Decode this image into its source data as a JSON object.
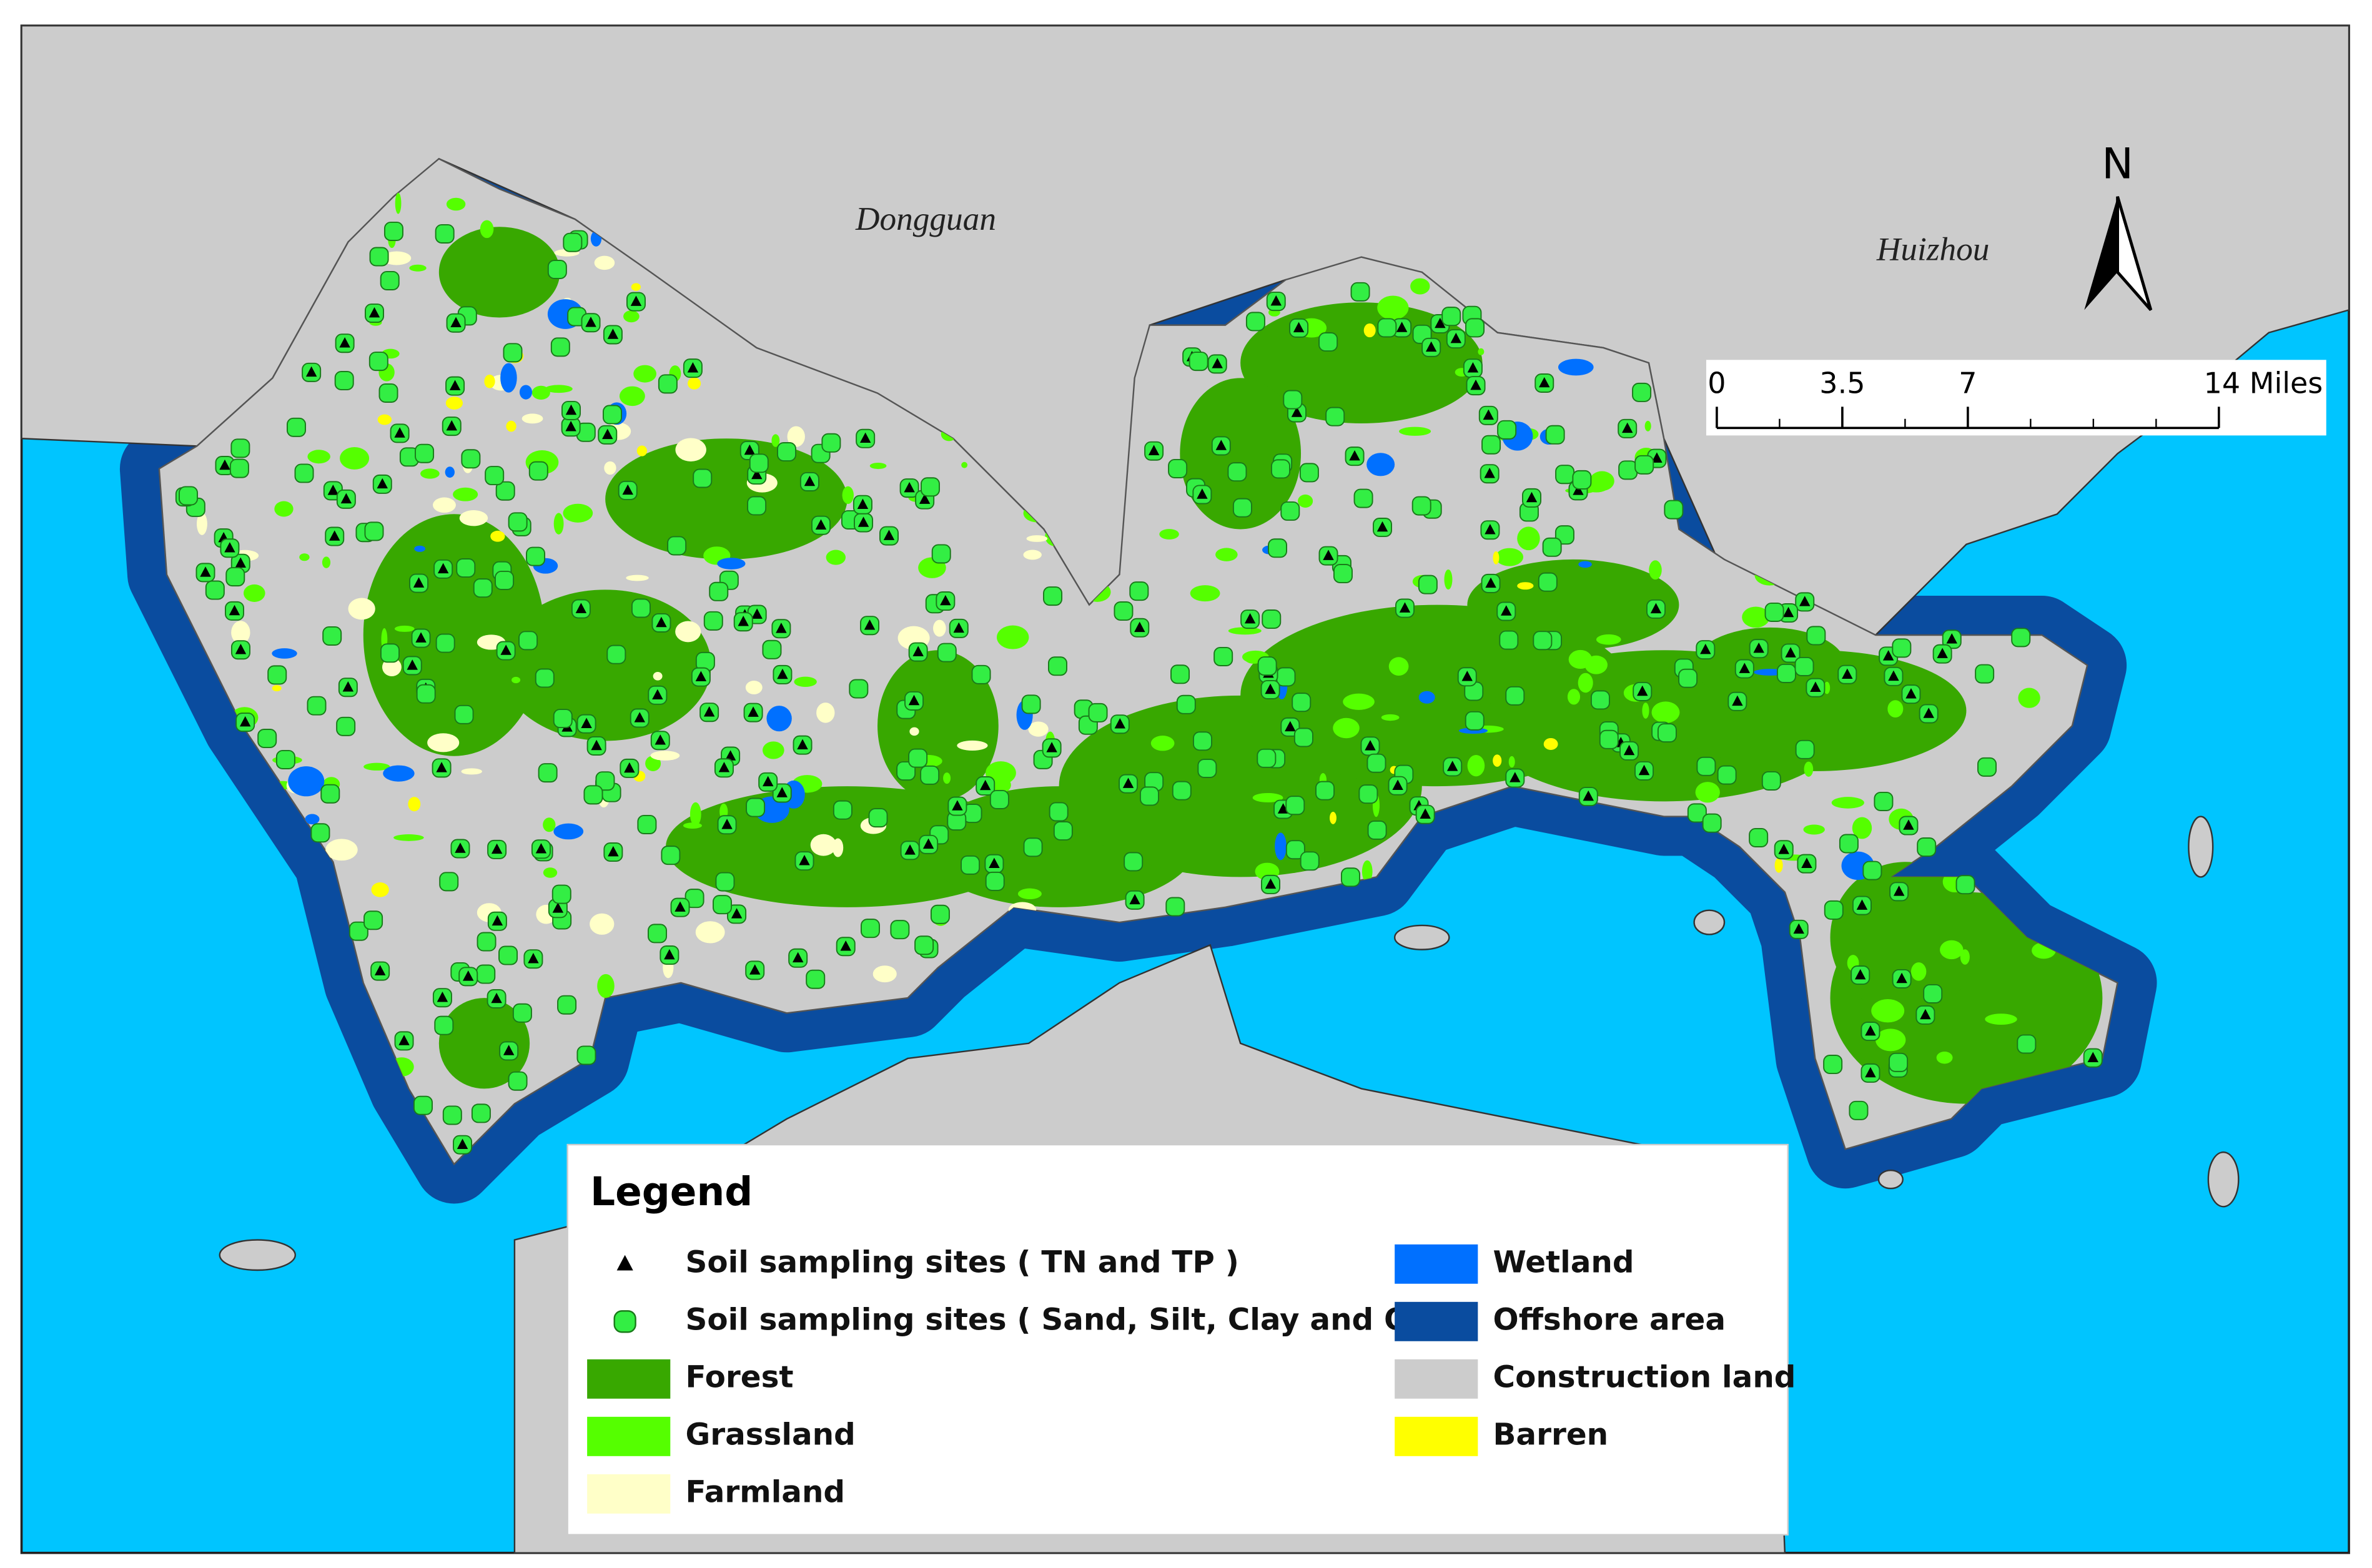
{
  "map": {
    "places": [
      "Dongguan",
      "Huizhou"
    ],
    "north": "N",
    "scale_bar": {
      "ticks": [
        0,
        3.5,
        7,
        {
          "value": 14,
          "label": "14 Miles"
        }
      ]
    }
  },
  "legend": {
    "title": "Legend",
    "items": [
      {
        "label": "Soil sampling sites ( TN and TP )",
        "symbol": "triangle",
        "color": "#000000"
      },
      {
        "label": "Soil sampling sites ( Sand, Silt, Clay and OM )",
        "symbol": "circle",
        "color": "#33ee44"
      },
      {
        "label": "Forest",
        "symbol": "box",
        "color": "#38a800"
      },
      {
        "label": "Grassland",
        "symbol": "box",
        "color": "#55ff00"
      },
      {
        "label": "Farmland",
        "symbol": "box",
        "color": "#ffffc8"
      },
      {
        "label": "Wetland",
        "symbol": "box",
        "color": "#0070ff"
      },
      {
        "label": "Offshore area",
        "symbol": "box",
        "color": "#0a4c9f"
      },
      {
        "label": "Construction land",
        "symbol": "box",
        "color": "#cccccc"
      },
      {
        "label": "Barren",
        "symbol": "box",
        "color": "#ffff00"
      }
    ]
  }
}
